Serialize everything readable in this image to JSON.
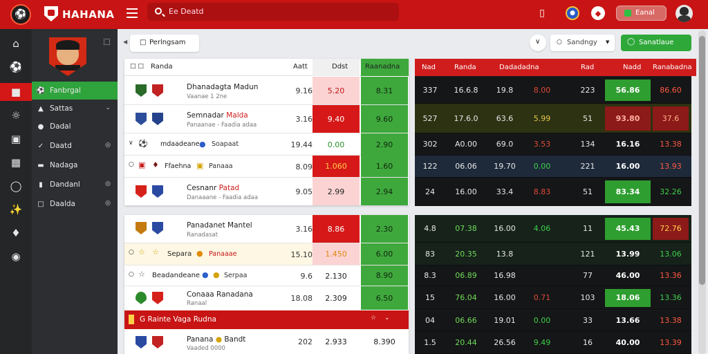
{
  "topbar": {
    "brand": "HAHANA",
    "search_text": "Ee Deatd",
    "balance_text": "Eanal"
  },
  "sidebar": {
    "items": [
      {
        "label": "Fanbrgal"
      },
      {
        "label": "Sattas"
      },
      {
        "label": "Dadal"
      },
      {
        "label": "Daatd"
      },
      {
        "label": "Nadaga"
      },
      {
        "label": "Dandanl"
      },
      {
        "label": "Daalda"
      }
    ]
  },
  "toolbar": {
    "tab_label": "Perlngsam",
    "dropdown_label": "Sandngy",
    "action_button": "Sanatlaue"
  },
  "left_table": {
    "headers": {
      "match": "Randa",
      "col1": "Aatt",
      "col2": "Ddst",
      "col3": "Raanadna"
    },
    "section_banner": "G Rainte Vaga Rudna",
    "rows": [
      {
        "team1": "Dhanadagta Madun",
        "team2": "Vaanae 1 2ne",
        "v1": "9.16",
        "v2": "5.20",
        "v3": "8.31"
      },
      {
        "team1": "Semnadar",
        "team1_accent": "Malda",
        "team2": "Panaanae - Faadia adaa",
        "v1": "3.16",
        "v2": "9.40",
        "v3": "9.60"
      },
      {
        "team1": "mdaadeane",
        "team2": "Soapaat",
        "v1": "19.44",
        "v2": "0.00",
        "v3": "2.90"
      },
      {
        "team1": "Ffaehna",
        "team2": "Panaaa",
        "v1": "8.09",
        "v2": "1.060",
        "v3": "1.60"
      },
      {
        "team1": "Cesnanr",
        "team1_accent": "Patad",
        "team2": "Danaaane - Faadia adaa",
        "v1": "9.05",
        "v2": "2.99",
        "v3": "2.94"
      },
      {
        "team1": "Panadanet Mantel",
        "team2": "Ranadasat",
        "v1": "3.16",
        "v2": "8.86",
        "v3": "2.30"
      },
      {
        "team1": "Separa",
        "team1_accent": "Panaaae",
        "team2": "",
        "v1": "15.10",
        "v2": "1.450",
        "v3": "6.00"
      },
      {
        "team1": "Beadandeane",
        "team2": "Serpaa",
        "v1": "9.6",
        "v2": "2.130",
        "v3": "8.90"
      },
      {
        "team1": "Conaaa Ranadana",
        "team2": "Ranaal",
        "v1": "18.08",
        "v2": "2.309",
        "v3": "6.50"
      },
      {
        "team1": "Panana",
        "team1_accent": "Bandt",
        "team2": "Vaaded 0000",
        "v1": "202",
        "v2": "2.933",
        "v3": "8.390"
      }
    ]
  },
  "right_table": {
    "headers": [
      "Nad",
      "Randa",
      "Dadadadna",
      "Rad",
      "Nadd",
      "Ranabadna"
    ],
    "rows": [
      {
        "a": "337",
        "b": "16.6.8",
        "c": "19.8",
        "d": "8.00",
        "e": "223",
        "f": "56.86",
        "g": "86.60"
      },
      {
        "a": "527",
        "b": "17.6.0",
        "c": "63.6",
        "d": "5.99",
        "e": "51",
        "f": "93.80",
        "g": "37.6"
      },
      {
        "a": "302",
        "b": "A0.00",
        "c": "69.0",
        "d": "3.53",
        "e": "134",
        "f": "16.16",
        "g": "13.38"
      },
      {
        "a": "122",
        "b": "06.06",
        "c": "19.70",
        "d": "0.00",
        "e": "221",
        "f": "16.00",
        "g": "13.93"
      },
      {
        "a": "24",
        "b": "16.00",
        "c": "33.4",
        "d": "8.83",
        "e": "51",
        "f": "83.34",
        "g": "32.26"
      },
      {
        "a": "4.8",
        "b": "07.38",
        "c": "16.00",
        "d": "4.06",
        "e": "11",
        "f": "45.43",
        "g": "72.76"
      },
      {
        "a": "83",
        "b": "20.35",
        "c": "13.8",
        "d": "",
        "e": "121",
        "f": "13.99",
        "g": "13.06"
      },
      {
        "a": "8.3",
        "b": "06.89",
        "c": "16.98",
        "d": "",
        "e": "77",
        "f": "46.00",
        "g": "13.36"
      },
      {
        "a": "15",
        "b": "76.04",
        "c": "16.00",
        "d": "0.71",
        "e": "103",
        "f": "18.06",
        "g": "13.36"
      },
      {
        "a": "04",
        "b": "06.66",
        "c": "19.01",
        "d": "0.00",
        "e": "33",
        "f": "13.66",
        "g": "13.38"
      },
      {
        "a": "1.5",
        "b": "20.44",
        "c": "26.56",
        "d": "9.49",
        "e": "16",
        "f": "40.00",
        "g": "13.39"
      }
    ]
  },
  "colors": {
    "brand_red": "#c81414",
    "green": "#3ea83c",
    "dark": "#1b1d1f"
  },
  "icons": [
    "logo-icon",
    "shield-icon",
    "menu-icon",
    "search-icon",
    "shop-icon",
    "globe-icon",
    "bell-icon",
    "wallet-icon",
    "avatar-icon",
    "home-icon",
    "soccer-icon",
    "gear-icon",
    "chevron-down-icon"
  ]
}
